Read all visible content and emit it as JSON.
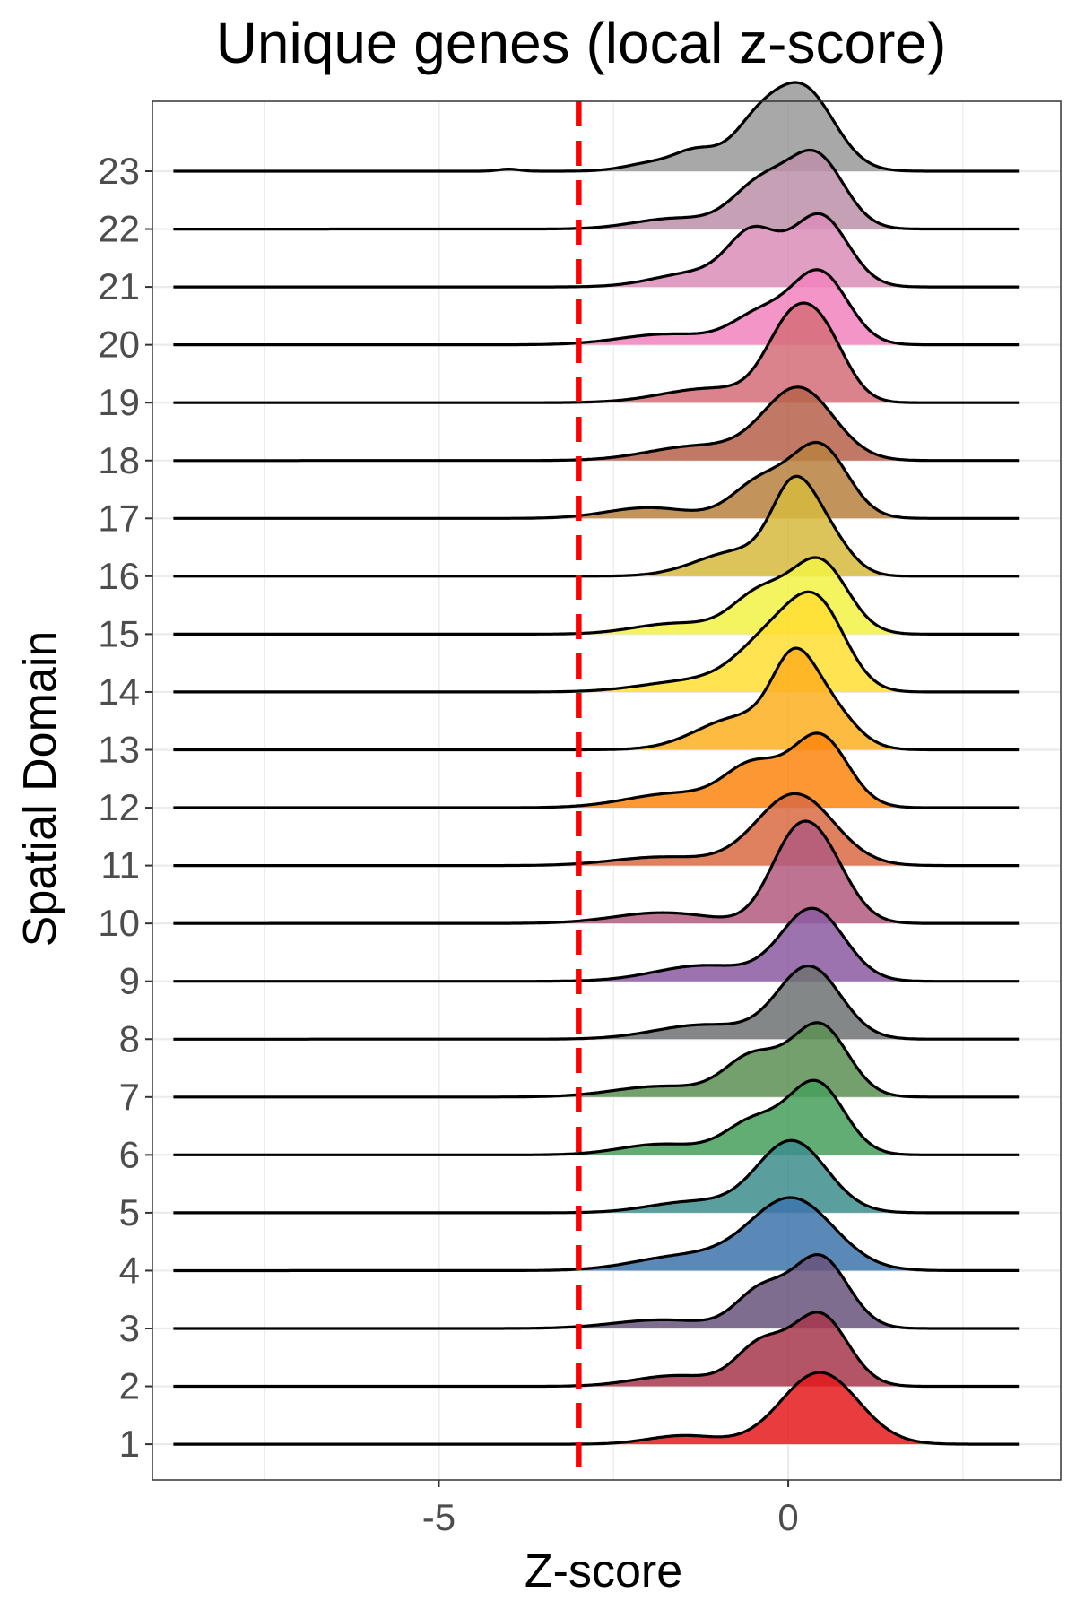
{
  "chart_data": {
    "type": "ridgeline",
    "title": "Unique genes (local z-score)",
    "xlabel": "Z-score",
    "ylabel": "Spatial Domain",
    "xlim": [
      -9.1,
      3.9
    ],
    "x_ticks": [
      {
        "value": -5,
        "label": "-5"
      },
      {
        "value": 0,
        "label": "0"
      }
    ],
    "x_minor_gridlines": [
      -7.5,
      -2.5,
      2.5
    ],
    "grid": true,
    "legend": "none",
    "density_x_range": [
      -8.8,
      3.3
    ],
    "baseline_rows": 23,
    "threshold_line": {
      "value": -3,
      "color": "#FF0000",
      "style": "dashed"
    },
    "series": [
      {
        "name": "1",
        "color": "#E41A1C",
        "peaks": [
          {
            "x": 0.45,
            "w": 0.55,
            "h": 1.0
          }
        ],
        "shoulders": [
          {
            "x": -1.5,
            "w": 0.5,
            "h": 0.12
          }
        ]
      },
      {
        "name": "2",
        "color": "#A6374C",
        "peaks": [
          {
            "x": 0.45,
            "w": 0.4,
            "h": 1.0
          },
          {
            "x": -0.4,
            "w": 0.35,
            "h": 0.55
          }
        ],
        "shoulders": [
          {
            "x": -1.6,
            "w": 0.6,
            "h": 0.15
          }
        ]
      },
      {
        "name": "3",
        "color": "#68537C",
        "peaks": [
          {
            "x": 0.45,
            "w": 0.4,
            "h": 1.0
          },
          {
            "x": -0.4,
            "w": 0.35,
            "h": 0.5
          }
        ],
        "shoulders": [
          {
            "x": -1.8,
            "w": 0.7,
            "h": 0.12
          }
        ]
      },
      {
        "name": "4",
        "color": "#3D74AA",
        "peaks": [
          {
            "x": 0.05,
            "w": 0.6,
            "h": 1.0
          }
        ],
        "shoulders": [
          {
            "x": -1.5,
            "w": 0.7,
            "h": 0.2
          }
        ]
      },
      {
        "name": "5",
        "color": "#3D8D8D",
        "peaks": [
          {
            "x": 0.05,
            "w": 0.5,
            "h": 1.0
          }
        ],
        "shoulders": [
          {
            "x": -1.4,
            "w": 0.6,
            "h": 0.15
          }
        ]
      },
      {
        "name": "6",
        "color": "#479F5A",
        "peaks": [
          {
            "x": 0.4,
            "w": 0.4,
            "h": 1.0
          },
          {
            "x": -0.5,
            "w": 0.4,
            "h": 0.45
          }
        ],
        "shoulders": [
          {
            "x": -1.8,
            "w": 0.6,
            "h": 0.15
          }
        ]
      },
      {
        "name": "7",
        "color": "#5A8F52",
        "peaks": [
          {
            "x": 0.45,
            "w": 0.4,
            "h": 1.0
          },
          {
            "x": -0.5,
            "w": 0.4,
            "h": 0.55
          }
        ],
        "shoulders": [
          {
            "x": -1.8,
            "w": 0.7,
            "h": 0.15
          }
        ]
      },
      {
        "name": "8",
        "color": "#6E7272",
        "peaks": [
          {
            "x": 0.3,
            "w": 0.45,
            "h": 1.0
          }
        ],
        "shoulders": [
          {
            "x": -1.2,
            "w": 0.7,
            "h": 0.2
          }
        ]
      },
      {
        "name": "9",
        "color": "#8B5BA0",
        "peaks": [
          {
            "x": 0.35,
            "w": 0.45,
            "h": 1.0
          }
        ],
        "shoulders": [
          {
            "x": -1.2,
            "w": 0.7,
            "h": 0.22
          }
        ]
      },
      {
        "name": "10",
        "color": "#B25A7E",
        "peaks": [
          {
            "x": 0.45,
            "w": 0.4,
            "h": 1.0
          },
          {
            "x": 0.0,
            "w": 0.35,
            "h": 0.7
          }
        ],
        "shoulders": [
          {
            "x": -1.8,
            "w": 0.7,
            "h": 0.15
          }
        ]
      },
      {
        "name": "11",
        "color": "#D96A43",
        "peaks": [
          {
            "x": 0.1,
            "w": 0.55,
            "h": 1.0
          }
        ],
        "shoulders": [
          {
            "x": -1.8,
            "w": 0.7,
            "h": 0.12
          }
        ]
      },
      {
        "name": "12",
        "color": "#FB860F",
        "peaks": [
          {
            "x": 0.45,
            "w": 0.4,
            "h": 1.0
          },
          {
            "x": -0.5,
            "w": 0.4,
            "h": 0.55
          }
        ],
        "shoulders": [
          {
            "x": -1.6,
            "w": 0.7,
            "h": 0.2
          }
        ]
      },
      {
        "name": "13",
        "color": "#FDAF20",
        "peaks": [
          {
            "x": 0.05,
            "w": 0.3,
            "h": 0.85
          },
          {
            "x": 0.5,
            "w": 0.4,
            "h": 0.65
          }
        ],
        "shoulders": [
          {
            "x": -0.7,
            "w": 0.6,
            "h": 0.45
          }
        ]
      },
      {
        "name": "14",
        "color": "#FFDE33",
        "peaks": [
          {
            "x": 0.45,
            "w": 0.4,
            "h": 1.0
          },
          {
            "x": -0.2,
            "w": 0.5,
            "h": 0.75
          }
        ],
        "shoulders": [
          {
            "x": -1.4,
            "w": 0.7,
            "h": 0.15
          }
        ]
      },
      {
        "name": "15",
        "color": "#F2F244",
        "peaks": [
          {
            "x": 0.45,
            "w": 0.4,
            "h": 1.0
          },
          {
            "x": -0.4,
            "w": 0.4,
            "h": 0.55
          }
        ],
        "shoulders": [
          {
            "x": -1.6,
            "w": 0.6,
            "h": 0.15
          }
        ]
      },
      {
        "name": "16",
        "color": "#D6BA3E",
        "peaks": [
          {
            "x": 0.05,
            "w": 0.3,
            "h": 0.95
          },
          {
            "x": 0.5,
            "w": 0.35,
            "h": 0.6
          }
        ],
        "shoulders": [
          {
            "x": -0.7,
            "w": 0.6,
            "h": 0.35
          }
        ]
      },
      {
        "name": "17",
        "color": "#B9803F",
        "peaks": [
          {
            "x": 0.45,
            "w": 0.4,
            "h": 1.0
          },
          {
            "x": -0.4,
            "w": 0.4,
            "h": 0.5
          }
        ],
        "shoulders": [
          {
            "x": -2.0,
            "w": 0.6,
            "h": 0.15
          }
        ]
      },
      {
        "name": "18",
        "color": "#B6614A",
        "peaks": [
          {
            "x": 0.15,
            "w": 0.5,
            "h": 1.0
          }
        ],
        "shoulders": [
          {
            "x": -1.3,
            "w": 0.7,
            "h": 0.2
          }
        ]
      },
      {
        "name": "19",
        "color": "#D56D78",
        "peaks": [
          {
            "x": 0.0,
            "w": 0.35,
            "h": 0.9
          },
          {
            "x": 0.5,
            "w": 0.35,
            "h": 0.85
          }
        ],
        "shoulders": [
          {
            "x": -1.1,
            "w": 0.7,
            "h": 0.2
          }
        ]
      },
      {
        "name": "20",
        "color": "#F182BD",
        "peaks": [
          {
            "x": 0.45,
            "w": 0.4,
            "h": 1.0
          },
          {
            "x": -0.4,
            "w": 0.4,
            "h": 0.4
          }
        ],
        "shoulders": [
          {
            "x": -1.7,
            "w": 0.7,
            "h": 0.15
          }
        ]
      },
      {
        "name": "21",
        "color": "#DA8DB8",
        "peaks": [
          {
            "x": 0.45,
            "w": 0.4,
            "h": 1.0
          },
          {
            "x": -0.5,
            "w": 0.35,
            "h": 0.7
          }
        ],
        "shoulders": [
          {
            "x": -1.3,
            "w": 0.6,
            "h": 0.2
          }
        ]
      },
      {
        "name": "22",
        "color": "#BC91A8",
        "peaks": [
          {
            "x": 0.4,
            "w": 0.4,
            "h": 1.0
          },
          {
            "x": -0.4,
            "w": 0.4,
            "h": 0.6
          }
        ],
        "shoulders": [
          {
            "x": -1.6,
            "w": 0.6,
            "h": 0.15
          }
        ]
      },
      {
        "name": "23",
        "color": "#999999",
        "peaks": [
          {
            "x": 0.2,
            "w": 0.45,
            "h": 1.15
          },
          {
            "x": -0.5,
            "w": 0.35,
            "h": 0.5
          }
        ],
        "shoulders": [
          {
            "x": -1.3,
            "w": 0.3,
            "h": 0.25
          },
          {
            "x": -1.9,
            "w": 0.4,
            "h": 0.12
          },
          {
            "x": -4.0,
            "w": 0.15,
            "h": 0.03
          }
        ]
      }
    ]
  }
}
